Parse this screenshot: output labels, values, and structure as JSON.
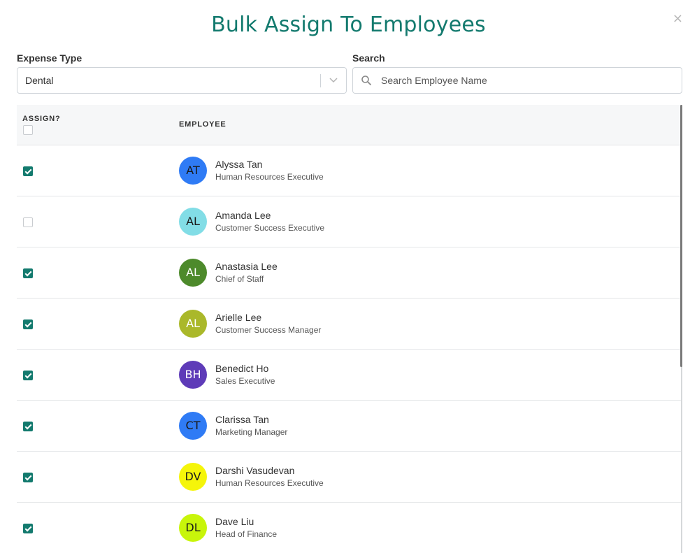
{
  "modal": {
    "title": "Bulk Assign To Employees",
    "close_label": "×"
  },
  "filters": {
    "expense_type_label": "Expense Type",
    "expense_type_value": "Dental",
    "search_label": "Search",
    "search_placeholder": "Search Employee Name",
    "search_value": ""
  },
  "table": {
    "headers": {
      "assign": "ASSIGN?",
      "employee": "EMPLOYEE"
    },
    "select_all_checked": false,
    "rows": [
      {
        "checked": true,
        "initials": "AT",
        "name": "Alyssa Tan",
        "role": "Human Resources Executive",
        "avatar_bg": "#2f7bf5",
        "avatar_fg": "#1a1a1a"
      },
      {
        "checked": false,
        "initials": "AL",
        "name": "Amanda Lee",
        "role": "Customer Success Executive",
        "avatar_bg": "#82dde6",
        "avatar_fg": "#1a1a1a"
      },
      {
        "checked": true,
        "initials": "AL",
        "name": "Anastasia Lee",
        "role": "Chief of Staff",
        "avatar_bg": "#4d8a2b",
        "avatar_fg": "#ffffff"
      },
      {
        "checked": true,
        "initials": "AL",
        "name": "Arielle Lee",
        "role": "Customer Success Manager",
        "avatar_bg": "#aab82a",
        "avatar_fg": "#ffffff"
      },
      {
        "checked": true,
        "initials": "BH",
        "name": "Benedict Ho",
        "role": "Sales Executive",
        "avatar_bg": "#5e3bb8",
        "avatar_fg": "#ffffff"
      },
      {
        "checked": true,
        "initials": "CT",
        "name": "Clarissa Tan",
        "role": "Marketing Manager",
        "avatar_bg": "#2f7bf5",
        "avatar_fg": "#1a1a1a"
      },
      {
        "checked": true,
        "initials": "DV",
        "name": "Darshi Vasudevan",
        "role": "Human Resources Executive",
        "avatar_bg": "#f5f50a",
        "avatar_fg": "#1a1a1a"
      },
      {
        "checked": true,
        "initials": "DL",
        "name": "Dave Liu",
        "role": "Head of Finance",
        "avatar_bg": "#c8f50a",
        "avatar_fg": "#1a1a1a"
      }
    ]
  },
  "colors": {
    "accent": "#137a6e"
  }
}
